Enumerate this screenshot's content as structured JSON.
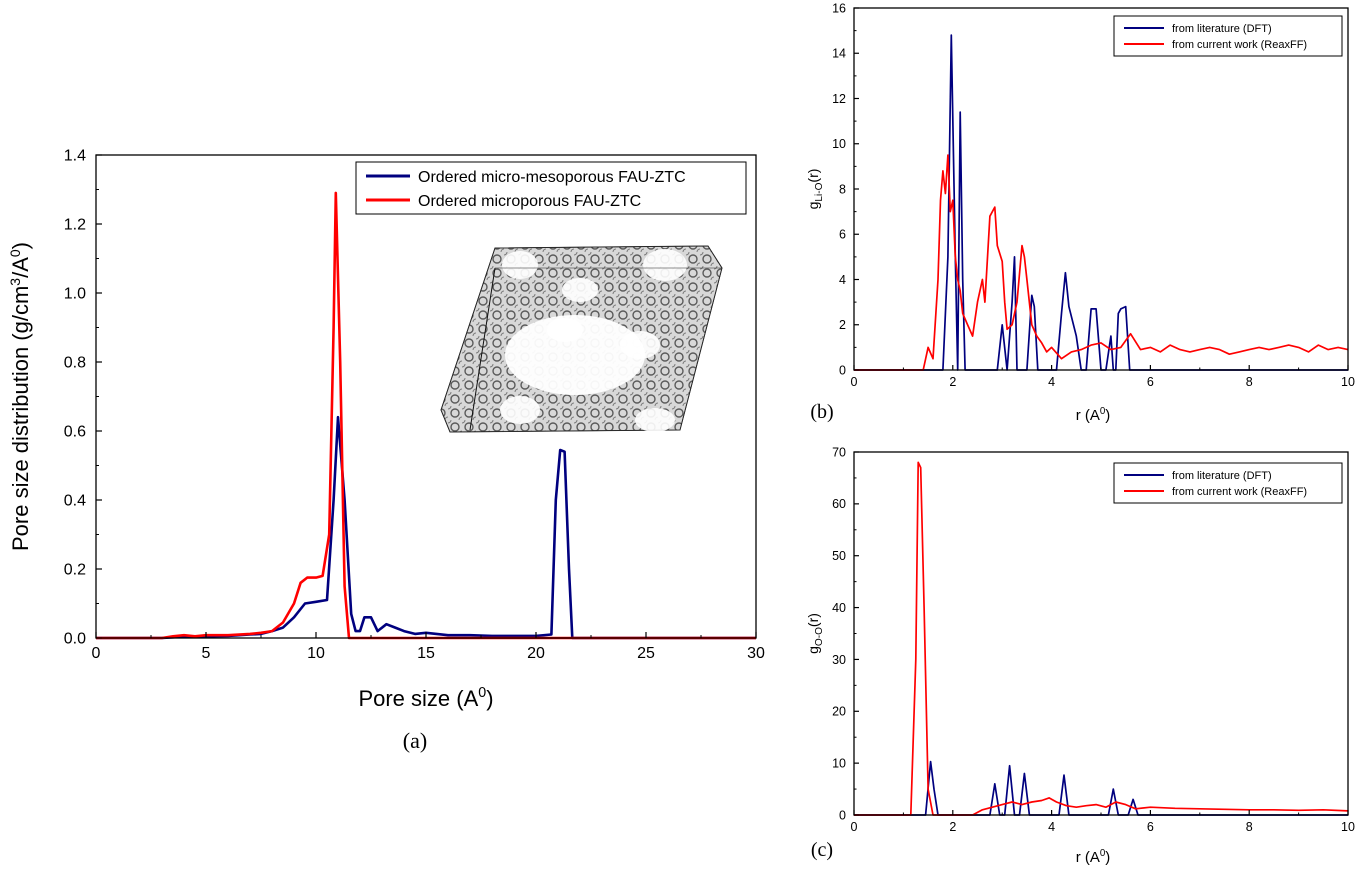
{
  "chart_data": [
    {
      "id": "a",
      "type": "line",
      "panel_label": "(a)",
      "xlabel": "Pore size (A",
      "xlabel_sup": "0",
      "xlabel_tail": ")",
      "ylabel": "Pore size distribution (g/cm",
      "ylabel_sup1": "3",
      "ylabel_mid": "/A",
      "ylabel_sup2": "0",
      "ylabel_tail": ")",
      "xlim": [
        0,
        30
      ],
      "ylim": [
        0,
        1.4
      ],
      "xticks": [
        0,
        5,
        10,
        15,
        20,
        25,
        30
      ],
      "xtick_labels": [
        "0",
        "5",
        "10",
        "15",
        "20",
        "25",
        "30"
      ],
      "yticks": [
        0,
        0.2,
        0.4,
        0.6,
        0.8,
        1.0,
        1.2,
        1.4
      ],
      "ytick_labels": [
        "0.0",
        "0.2",
        "0.4",
        "0.6",
        "0.8",
        "1.0",
        "1.2",
        "1.4"
      ],
      "legend_position": "top-right",
      "grid": false,
      "inset": "ordered micro-mesoporous FAU-ZTC carbon framework structure",
      "series": [
        {
          "name": "Ordered micro-mesoporous FAU-ZTC",
          "color": "#00007f",
          "x": [
            0,
            3,
            3.5,
            4,
            4.5,
            5,
            6,
            7,
            7.5,
            8,
            8.5,
            9,
            9.5,
            10,
            10.5,
            10.8,
            11.0,
            11.3,
            11.6,
            11.8,
            12.0,
            12.2,
            12.5,
            12.8,
            13.2,
            13.6,
            14.0,
            14.5,
            15,
            16,
            17,
            18,
            19,
            20,
            20.7,
            20.9,
            21.1,
            21.3,
            21.5,
            21.65,
            22,
            30
          ],
          "y": [
            0,
            0,
            0.002,
            0.004,
            0.003,
            0.005,
            0.006,
            0.01,
            0.012,
            0.02,
            0.03,
            0.06,
            0.1,
            0.105,
            0.11,
            0.4,
            0.64,
            0.4,
            0.07,
            0.02,
            0.02,
            0.06,
            0.06,
            0.02,
            0.04,
            0.03,
            0.02,
            0.012,
            0.015,
            0.008,
            0.008,
            0.006,
            0.006,
            0.006,
            0.01,
            0.4,
            0.545,
            0.54,
            0.2,
            0.0,
            0,
            0
          ]
        },
        {
          "name": "Ordered microporous FAU-ZTC",
          "color": "#ff0000",
          "x": [
            0,
            3,
            3.5,
            4,
            4.5,
            5,
            6,
            7,
            7.5,
            8,
            8.5,
            9,
            9.3,
            9.6,
            10.0,
            10.3,
            10.6,
            10.8,
            10.9,
            11.1,
            11.3,
            11.5,
            12,
            30
          ],
          "y": [
            0,
            0,
            0.005,
            0.008,
            0.005,
            0.008,
            0.008,
            0.012,
            0.015,
            0.02,
            0.045,
            0.1,
            0.16,
            0.175,
            0.175,
            0.18,
            0.3,
            0.9,
            1.29,
            0.8,
            0.15,
            0.0,
            0,
            0
          ]
        }
      ]
    },
    {
      "id": "b",
      "type": "line",
      "panel_label": "(b)",
      "xlabel": "r (A",
      "xlabel_sup": "0",
      "xlabel_tail": ")",
      "ylabel": "g",
      "ylabel_sub": "Li-O",
      "ylabel_tail": "(r)",
      "xlim": [
        0,
        10
      ],
      "ylim": [
        0,
        16
      ],
      "xticks": [
        0,
        2,
        4,
        6,
        8,
        10
      ],
      "xtick_labels": [
        "0",
        "2",
        "4",
        "6",
        "8",
        "10"
      ],
      "yticks": [
        0,
        2,
        4,
        6,
        8,
        10,
        12,
        14,
        16
      ],
      "ytick_labels": [
        "0",
        "2",
        "4",
        "6",
        "8",
        "10",
        "12",
        "14",
        "16"
      ],
      "legend_position": "top-right",
      "grid": false,
      "series": [
        {
          "name": "from literature (DFT)",
          "color": "#00007f",
          "x": [
            0,
            1.8,
            1.9,
            1.97,
            2.05,
            2.1,
            2.15,
            2.2,
            2.25,
            2.35,
            2.9,
            3.0,
            3.1,
            3.2,
            3.25,
            3.3,
            3.4,
            3.5,
            3.6,
            3.65,
            3.72,
            3.8,
            4.1,
            4.2,
            4.28,
            4.35,
            4.5,
            4.6,
            4.7,
            4.8,
            4.9,
            5.0,
            5.1,
            5.2,
            5.25,
            5.3,
            5.35,
            5.4,
            5.5,
            5.58,
            5.65,
            5.75,
            10
          ],
          "y": [
            0,
            0,
            5,
            14.8,
            5,
            0,
            11.4,
            4,
            0,
            0,
            0,
            2,
            0,
            3,
            5,
            0,
            0,
            0,
            3.3,
            2.8,
            0,
            0,
            0,
            2.5,
            4.3,
            2.8,
            1.5,
            0,
            0,
            2.7,
            2.7,
            0,
            0,
            1.5,
            0,
            0,
            2.5,
            2.7,
            2.8,
            0,
            0,
            0,
            0
          ]
        },
        {
          "name": "from current work (ReaxFF)",
          "color": "#ff0000",
          "x": [
            0,
            1.4,
            1.5,
            1.6,
            1.7,
            1.75,
            1.8,
            1.85,
            1.9,
            1.95,
            2.0,
            2.05,
            2.1,
            2.15,
            2.2,
            2.3,
            2.4,
            2.5,
            2.6,
            2.65,
            2.75,
            2.85,
            2.9,
            3.0,
            3.05,
            3.1,
            3.2,
            3.3,
            3.4,
            3.45,
            3.5,
            3.6,
            3.7,
            3.8,
            3.9,
            4.0,
            4.2,
            4.4,
            4.6,
            4.8,
            5.0,
            5.2,
            5.4,
            5.6,
            5.8,
            6.0,
            6.2,
            6.4,
            6.6,
            6.8,
            7.0,
            7.2,
            7.4,
            7.6,
            7.8,
            8.0,
            8.2,
            8.4,
            8.6,
            8.8,
            9.0,
            9.2,
            9.4,
            9.6,
            9.8,
            10
          ],
          "y": [
            0,
            0,
            1.0,
            0.5,
            4,
            7.5,
            8.8,
            7.8,
            9.5,
            7.0,
            7.5,
            5.0,
            4.0,
            3.5,
            2.5,
            2.0,
            1.5,
            3.0,
            4.0,
            3.0,
            6.8,
            7.2,
            5.5,
            4.8,
            3.0,
            1.8,
            2.0,
            3.0,
            5.5,
            5.0,
            4.0,
            2.0,
            1.5,
            1.2,
            0.8,
            1.0,
            0.5,
            0.8,
            0.9,
            1.1,
            1.2,
            0.9,
            1.0,
            1.6,
            0.9,
            1.0,
            0.8,
            1.1,
            0.9,
            0.8,
            0.9,
            1.0,
            0.9,
            0.7,
            0.8,
            0.9,
            1.0,
            0.9,
            1.0,
            1.1,
            1.0,
            0.8,
            1.1,
            0.9,
            1.0,
            0.9
          ]
        }
      ]
    },
    {
      "id": "c",
      "type": "line",
      "panel_label": "(c)",
      "xlabel": "r (A",
      "xlabel_sup": "0",
      "xlabel_tail": ")",
      "ylabel": "g",
      "ylabel_sub": "O-O",
      "ylabel_tail": "(r)",
      "xlim": [
        0,
        10
      ],
      "ylim": [
        0,
        70
      ],
      "xticks": [
        0,
        2,
        4,
        6,
        8,
        10
      ],
      "xtick_labels": [
        "0",
        "2",
        "4",
        "6",
        "8",
        "10"
      ],
      "yticks": [
        0,
        10,
        20,
        30,
        40,
        50,
        60,
        70
      ],
      "ytick_labels": [
        "0",
        "10",
        "20",
        "30",
        "40",
        "50",
        "60",
        "70"
      ],
      "legend_position": "top-right",
      "grid": false,
      "series": [
        {
          "name": "from literature (DFT)",
          "color": "#00007f",
          "x": [
            0,
            1.45,
            1.55,
            1.62,
            1.7,
            2.75,
            2.85,
            2.95,
            3.05,
            3.15,
            3.25,
            3.35,
            3.45,
            3.55,
            4.15,
            4.25,
            4.35,
            5.15,
            5.25,
            5.35,
            5.55,
            5.65,
            5.75,
            10
          ],
          "y": [
            0,
            0,
            10.3,
            5,
            0,
            0,
            6,
            0,
            0,
            9.5,
            0,
            0,
            8,
            0,
            0,
            7.7,
            0,
            0,
            5,
            0,
            0,
            3,
            0,
            0
          ]
        },
        {
          "name": "from current work (ReaxFF)",
          "color": "#ff0000",
          "x": [
            0,
            1.15,
            1.25,
            1.3,
            1.35,
            1.42,
            1.5,
            1.6,
            2.4,
            2.6,
            2.8,
            3.0,
            3.2,
            3.4,
            3.6,
            3.8,
            3.95,
            4.1,
            4.3,
            4.5,
            4.7,
            4.9,
            5.1,
            5.3,
            5.5,
            5.7,
            6.0,
            6.5,
            7.0,
            7.5,
            8.0,
            8.5,
            9.0,
            9.5,
            10
          ],
          "y": [
            0,
            0,
            30,
            68,
            67,
            40,
            5,
            0,
            0,
            1.0,
            1.5,
            2.0,
            2.5,
            2.0,
            2.5,
            2.8,
            3.3,
            2.5,
            1.8,
            1.5,
            1.8,
            2.0,
            1.5,
            2.5,
            2.0,
            1.2,
            1.5,
            1.3,
            1.2,
            1.1,
            1.0,
            1.0,
            0.9,
            1.0,
            0.8
          ]
        }
      ]
    }
  ]
}
